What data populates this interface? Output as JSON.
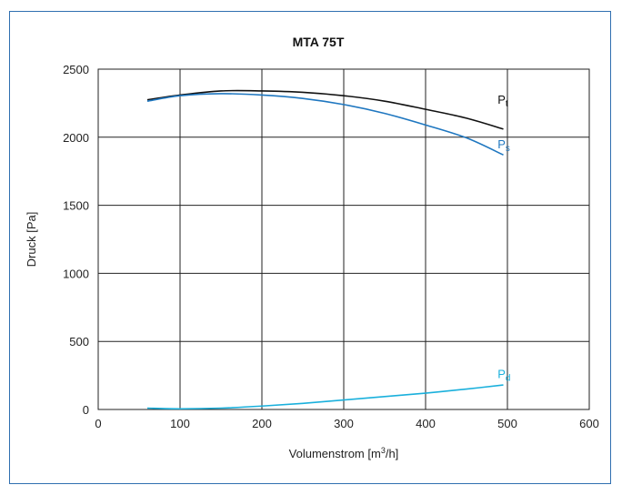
{
  "chart_data": {
    "type": "line",
    "title": "MTA 75T",
    "xlabel": "Volumenstrom [m³/h]",
    "xlabel_parts": {
      "before": "Volumenstrom [m",
      "sup": "3",
      "after": "/h]"
    },
    "ylabel": "Druck [Pa]",
    "xlim": [
      0,
      600
    ],
    "ylim": [
      0,
      2500
    ],
    "xticks": [
      "0",
      "100",
      "200",
      "300",
      "400",
      "500",
      "600"
    ],
    "yticks": [
      "0",
      "500",
      "1000",
      "1500",
      "2000",
      "2500"
    ],
    "grid": true,
    "series": [
      {
        "name": "Pt",
        "main": "P",
        "sub": "t",
        "color": "#111111",
        "x": [
          60,
          100,
          150,
          200,
          250,
          300,
          350,
          400,
          450,
          495
        ],
        "y": [
          2275,
          2310,
          2340,
          2340,
          2330,
          2305,
          2265,
          2205,
          2140,
          2060
        ]
      },
      {
        "name": "Ps",
        "main": "P",
        "sub": "s",
        "color": "#1f77c0",
        "x": [
          60,
          100,
          150,
          200,
          250,
          300,
          350,
          400,
          450,
          495
        ],
        "y": [
          2265,
          2305,
          2320,
          2310,
          2285,
          2240,
          2175,
          2090,
          1995,
          1870
        ]
      },
      {
        "name": "Pd",
        "main": "P",
        "sub": "d",
        "color": "#1ab0dc",
        "x": [
          60,
          100,
          150,
          200,
          250,
          300,
          350,
          400,
          450,
          495
        ],
        "y": [
          10,
          5,
          10,
          25,
          45,
          70,
          95,
          120,
          150,
          180
        ]
      }
    ]
  }
}
